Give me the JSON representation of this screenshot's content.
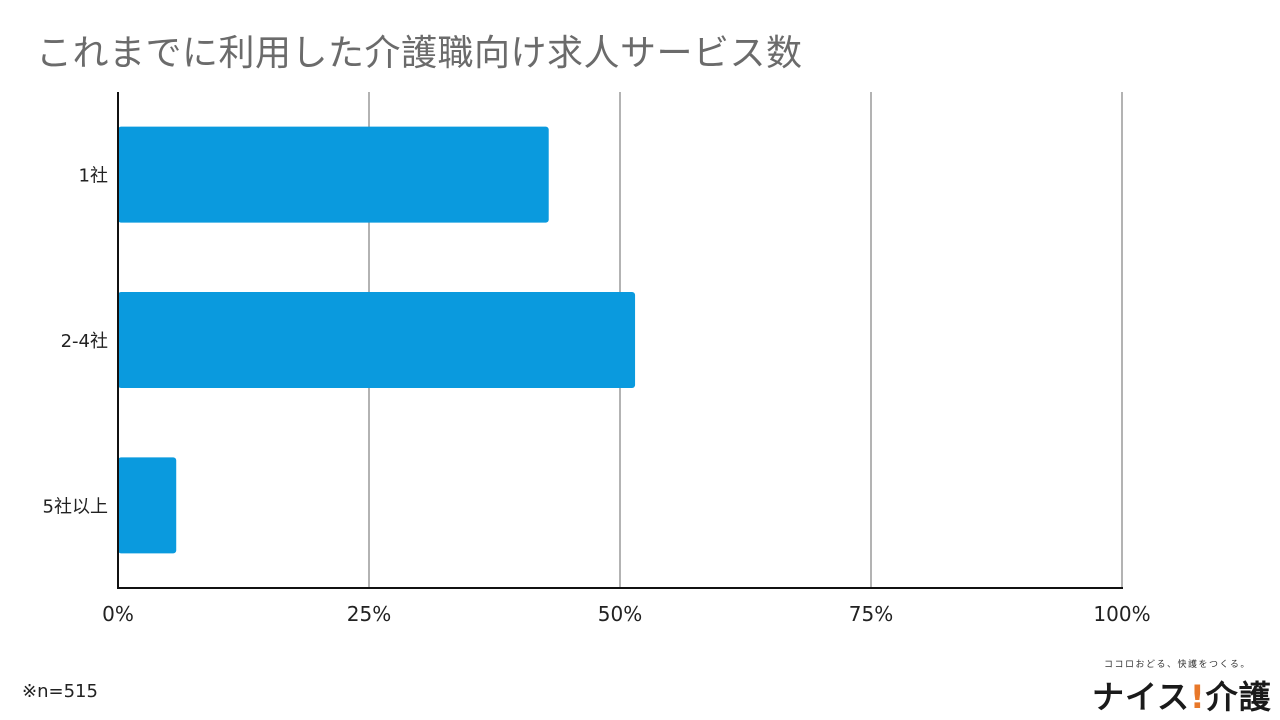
{
  "chart_data": {
    "type": "bar",
    "orientation": "horizontal",
    "title": "これまでに利用した介護職向け求人サービス数",
    "categories": [
      "1社",
      "2-4社",
      "5社以上"
    ],
    "values": [
      42.9,
      51.5,
      5.8
    ],
    "value_unit": "%",
    "xlim": [
      0,
      100
    ],
    "x_ticks": [
      "0%",
      "25%",
      "50%",
      "75%",
      "100%"
    ],
    "x_tick_values": [
      0,
      25,
      50,
      75,
      100
    ],
    "grid": "vertical",
    "legend": "none",
    "bar_color": "#0a9ade"
  },
  "footnote": "※n=515",
  "logo": {
    "tagline": "ココロおどる、快護をつくる。",
    "name_part1": "ナイス",
    "name_mark": "!",
    "name_part2": "介護"
  }
}
